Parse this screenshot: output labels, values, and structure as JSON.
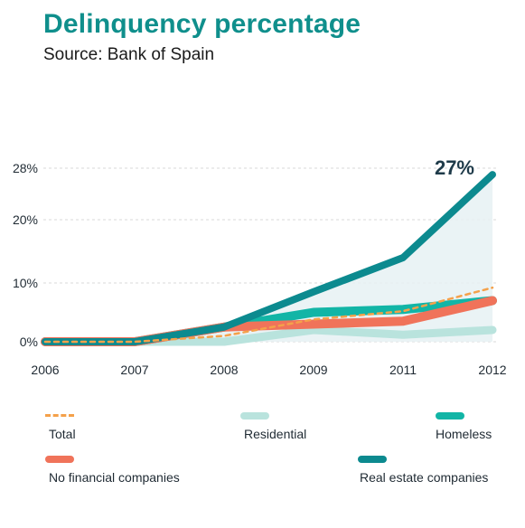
{
  "title": "Delinquency percentage",
  "subtitle": "Source: Bank of Spain",
  "colors": {
    "title": "#0f8f8c",
    "total": "#f4a14a",
    "residential": "#b9e3dd",
    "homeless": "#12b5a6",
    "no_financial": "#f0735a",
    "real_estate": "#0c8a8f",
    "area_fill": "#e6f1f3"
  },
  "chart_data": {
    "type": "line",
    "categories": [
      "2006",
      "2007",
      "2008",
      "2009",
      "2011",
      "2012"
    ],
    "y_ticks": [
      "28%",
      "20%",
      "10%",
      "0%"
    ],
    "ylim": [
      0,
      28
    ],
    "grid": true,
    "legend_position": "bottom",
    "annotation": "27%",
    "series": [
      {
        "name": "Total",
        "values": [
          0,
          0,
          1,
          3.8,
          5.2,
          9.2
        ]
      },
      {
        "name": "Residential",
        "values": [
          0,
          0,
          0,
          2,
          1.2,
          2
        ]
      },
      {
        "name": "Homeless",
        "values": [
          0,
          0,
          2.5,
          5,
          5.5,
          7
        ]
      },
      {
        "name": "No financial companies",
        "values": [
          0,
          0,
          2.5,
          3,
          3.5,
          7
        ]
      },
      {
        "name": "Real estate companies",
        "values": [
          0,
          0,
          2.5,
          8.5,
          14,
          27
        ]
      }
    ]
  },
  "legend": [
    {
      "label": "Total"
    },
    {
      "label": "Residential"
    },
    {
      "label": "Homeless"
    },
    {
      "label": "No financial companies"
    },
    {
      "label": "Real estate companies"
    }
  ]
}
